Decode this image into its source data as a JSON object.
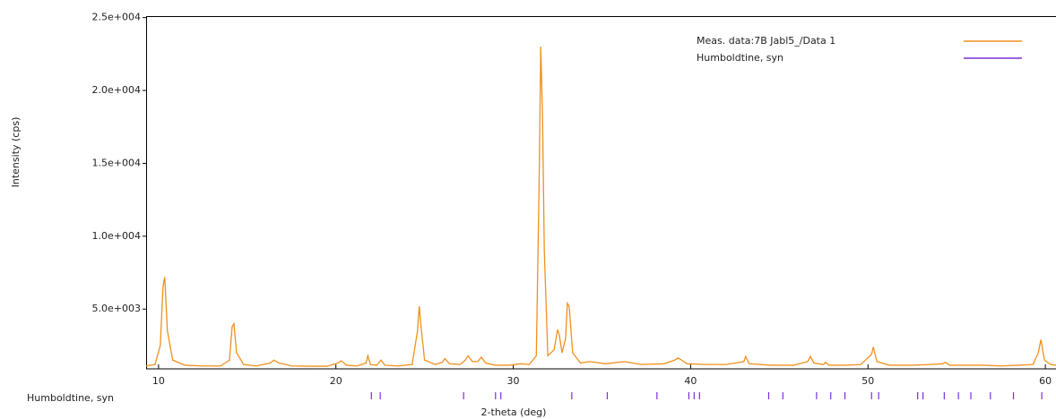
{
  "chart_data": {
    "type": "line",
    "x_label": "2-theta (deg)",
    "y_label": "Intensity (cps)",
    "xlim": [
      9.3,
      60.6
    ],
    "ylim": [
      900,
      25100
    ],
    "xticks": [
      10,
      20,
      30,
      40,
      50,
      60
    ],
    "yticks": [
      {
        "value": 5000,
        "label": "5.0e+003"
      },
      {
        "value": 10000,
        "label": "1.0e+004"
      },
      {
        "value": 15000,
        "label": "1.5e+004"
      },
      {
        "value": 20000,
        "label": "2.0e+004"
      },
      {
        "value": 25000,
        "label": "2.5e+004"
      }
    ],
    "legend": "upper right",
    "x": [
      9.3,
      9.8,
      10.1,
      10.25,
      10.35,
      10.5,
      10.8,
      11.5,
      12.5,
      13.5,
      14.0,
      14.15,
      14.25,
      14.4,
      14.8,
      15.5,
      16.3,
      16.5,
      16.8,
      17.5,
      18.5,
      19.5,
      20.1,
      20.3,
      20.6,
      21.2,
      21.7,
      21.8,
      21.95,
      22.3,
      22.55,
      22.75,
      23.5,
      24.3,
      24.6,
      24.7,
      24.8,
      25.0,
      25.6,
      26.0,
      26.15,
      26.4,
      27.0,
      27.3,
      27.45,
      27.7,
      28.0,
      28.2,
      28.45,
      29.0,
      29.8,
      30.4,
      30.9,
      31.3,
      31.45,
      31.55,
      31.65,
      31.75,
      31.95,
      32.3,
      32.5,
      32.6,
      32.75,
      32.95,
      33.05,
      33.15,
      33.35,
      33.8,
      34.3,
      35.2,
      36.3,
      37.2,
      38.5,
      39.1,
      39.3,
      39.8,
      40.8,
      42.0,
      43.0,
      43.1,
      43.3,
      44.5,
      45.8,
      46.6,
      46.75,
      46.95,
      47.5,
      47.6,
      47.8,
      48.8,
      49.6,
      50.2,
      50.3,
      50.5,
      51.2,
      52.5,
      53.5,
      54.2,
      54.35,
      54.6,
      55.5,
      56.5,
      57.5,
      58.5,
      59.3,
      59.6,
      59.75,
      59.95,
      60.3,
      60.6
    ],
    "series": [
      {
        "name": "Meas. data:7B Jabl5_/Data 1",
        "color": "#f0901e",
        "values": [
          1100,
          1200,
          2500,
          6500,
          7200,
          3500,
          1500,
          1150,
          1100,
          1100,
          1500,
          3800,
          4000,
          2000,
          1200,
          1100,
          1300,
          1500,
          1300,
          1100,
          1080,
          1080,
          1300,
          1450,
          1150,
          1100,
          1300,
          1800,
          1200,
          1150,
          1500,
          1150,
          1100,
          1200,
          3500,
          5200,
          3800,
          1500,
          1200,
          1350,
          1600,
          1250,
          1200,
          1500,
          1800,
          1400,
          1400,
          1700,
          1300,
          1150,
          1150,
          1250,
          1200,
          1800,
          13000,
          23000,
          18200,
          9000,
          1800,
          2200,
          3600,
          3200,
          2000,
          3000,
          5400,
          5200,
          2000,
          1300,
          1400,
          1250,
          1400,
          1200,
          1250,
          1500,
          1650,
          1250,
          1200,
          1200,
          1400,
          1750,
          1250,
          1150,
          1150,
          1400,
          1750,
          1300,
          1200,
          1350,
          1150,
          1150,
          1200,
          1900,
          2400,
          1400,
          1150,
          1150,
          1200,
          1250,
          1350,
          1150,
          1150,
          1150,
          1100,
          1150,
          1200,
          2000,
          2900,
          1500,
          1200,
          1150
        ]
      }
    ],
    "reference_phases": [
      {
        "name": "Humboldtine, syn",
        "color": "#7b2fd9",
        "x": [
          22.0,
          22.5,
          27.2,
          29.0,
          29.3,
          33.3,
          35.3,
          38.1,
          39.9,
          40.2,
          40.5,
          44.4,
          45.2,
          47.1,
          47.9,
          48.7,
          50.2,
          50.6,
          52.8,
          53.1,
          54.3,
          55.1,
          55.8,
          56.9,
          58.2,
          59.8
        ]
      }
    ]
  }
}
